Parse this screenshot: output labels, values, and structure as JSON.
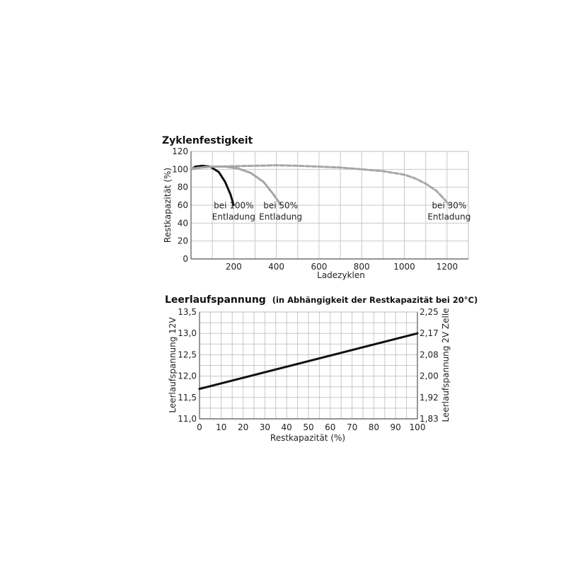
{
  "chart_data": [
    {
      "type": "line",
      "title": "Zyklenfestigkeit",
      "xlabel": "Ladezyklen",
      "ylabel": "Restkapazität (%)",
      "xlim": [
        0,
        1300
      ],
      "ylim": [
        0,
        120
      ],
      "x_ticks": [
        "200",
        "400",
        "600",
        "800",
        "1000",
        "1200"
      ],
      "y_ticks": [
        "0",
        "20",
        "40",
        "60",
        "80",
        "100",
        "120"
      ],
      "grid": true,
      "series": [
        {
          "name": "bei 100% Entladung",
          "color": "#111111",
          "style": "solid",
          "x": [
            0,
            20,
            50,
            90,
            130,
            160,
            185,
            200
          ],
          "y": [
            100,
            103,
            104,
            103,
            97,
            86,
            72,
            60
          ]
        },
        {
          "name": "bei 50% Entladung",
          "color": "#a6a6a6",
          "style": "solid",
          "x": [
            0,
            50,
            100,
            160,
            220,
            280,
            340,
            380,
            410,
            420
          ],
          "y": [
            100,
            102,
            103,
            103,
            101,
            96,
            86,
            74,
            64,
            60
          ]
        },
        {
          "name": "bei 30% Entladung",
          "color": "#a6a6a6",
          "style": "dashed",
          "x": [
            0,
            100,
            200,
            300,
            400,
            500,
            600,
            700,
            800,
            900,
            1000,
            1050,
            1100,
            1150,
            1190,
            1210
          ],
          "y": [
            101,
            103,
            103.5,
            104,
            104.5,
            104,
            103,
            102,
            100,
            98,
            94,
            90,
            84,
            76,
            66,
            60
          ]
        }
      ],
      "annotations": [
        {
          "lines": [
            "bei 100%",
            "Entladung"
          ],
          "x": 200,
          "y": 50
        },
        {
          "lines": [
            "bei 50%",
            "Entladung"
          ],
          "x": 420,
          "y": 50
        },
        {
          "lines": [
            "bei 30%",
            "Entladung"
          ],
          "x": 1210,
          "y": 50
        }
      ]
    },
    {
      "type": "line",
      "title": "Leerlaufspannung",
      "subtitle": "(in Abhängigkeit der Restkapazität bei 20°C)",
      "xlabel": "Restkapazität (%)",
      "ylabel": "Leerlaufspannung 12V",
      "ylabel_right": "Leerlaufspannung 2V Zelle",
      "xlim": [
        0,
        100
      ],
      "ylim": [
        11.0,
        13.5
      ],
      "x_ticks": [
        "0",
        "10",
        "20",
        "30",
        "40",
        "50",
        "60",
        "70",
        "80",
        "90",
        "100"
      ],
      "y_ticks": [
        "11,0",
        "11,5",
        "12,0",
        "12,5",
        "13,0",
        "13,5"
      ],
      "y_ticks_right": [
        "1,83",
        "1,92",
        "2,00",
        "2,08",
        "2,17",
        "2,25"
      ],
      "grid": true,
      "series": [
        {
          "color": "#111111",
          "style": "solid",
          "x": [
            0,
            100
          ],
          "y": [
            11.7,
            13.0
          ]
        }
      ]
    }
  ]
}
